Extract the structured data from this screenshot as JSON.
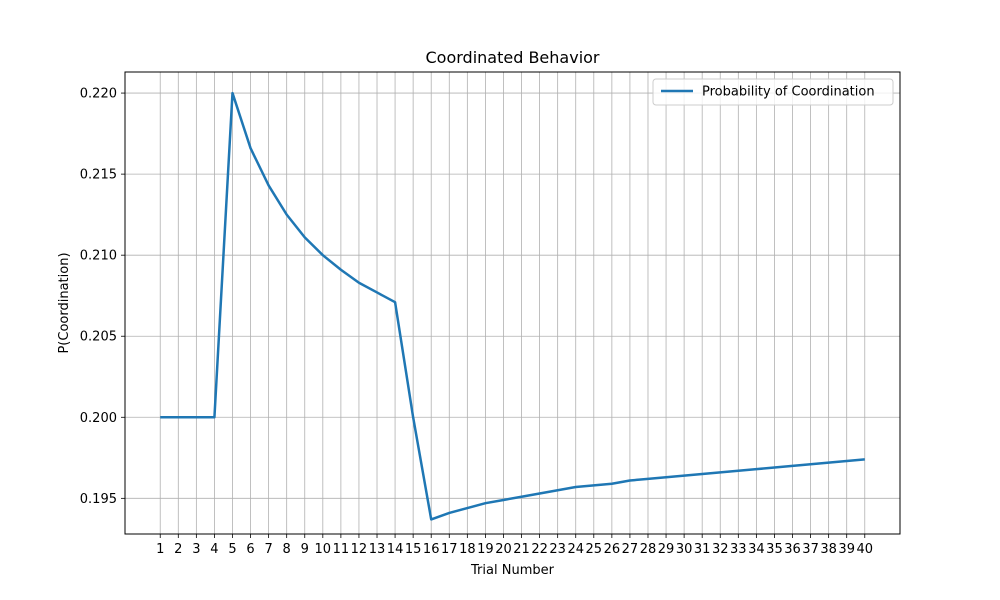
{
  "chart_data": {
    "type": "line",
    "title": "Coordinated Behavior",
    "xlabel": "Trial Number",
    "ylabel": "P(Coordination)",
    "xlim": [
      -0.95,
      41.95
    ],
    "ylim": [
      0.1928,
      0.2213
    ],
    "x": [
      1,
      2,
      3,
      4,
      5,
      6,
      7,
      8,
      9,
      10,
      11,
      12,
      13,
      14,
      15,
      16,
      17,
      18,
      19,
      20,
      21,
      22,
      23,
      24,
      25,
      26,
      27,
      28,
      29,
      30,
      31,
      32,
      33,
      34,
      35,
      36,
      37,
      38,
      39,
      40
    ],
    "xticks": [
      "1",
      "2",
      "3",
      "4",
      "5",
      "6",
      "7",
      "8",
      "9",
      "10",
      "11",
      "12",
      "13",
      "14",
      "15",
      "16",
      "17",
      "18",
      "19",
      "20",
      "21",
      "22",
      "23",
      "24",
      "25",
      "26",
      "27",
      "28",
      "29",
      "30",
      "31",
      "32",
      "33",
      "34",
      "35",
      "36",
      "37",
      "38",
      "39",
      "40"
    ],
    "yticks": [
      "0.195",
      "0.200",
      "0.205",
      "0.210",
      "0.215",
      "0.220"
    ],
    "ytick_values": [
      0.195,
      0.2,
      0.205,
      0.21,
      0.215,
      0.22
    ],
    "grid": true,
    "legend_position": "top-right",
    "series": [
      {
        "name": "Probability of Coordination",
        "color": "#1f77b4",
        "values": [
          0.2,
          0.2,
          0.2,
          0.2,
          0.22,
          0.2166,
          0.2143,
          0.2125,
          0.2111,
          0.21,
          0.2091,
          0.2083,
          0.2077,
          0.2071,
          0.2,
          0.1937,
          0.1941,
          0.1944,
          0.1947,
          0.1949,
          0.1951,
          0.1953,
          0.1955,
          0.1957,
          0.1958,
          0.1959,
          0.1961,
          0.1962,
          0.1963,
          0.1964,
          0.1965,
          0.1966,
          0.1967,
          0.1968,
          0.1969,
          0.197,
          0.1971,
          0.1972,
          0.1973,
          0.1974
        ]
      }
    ]
  }
}
